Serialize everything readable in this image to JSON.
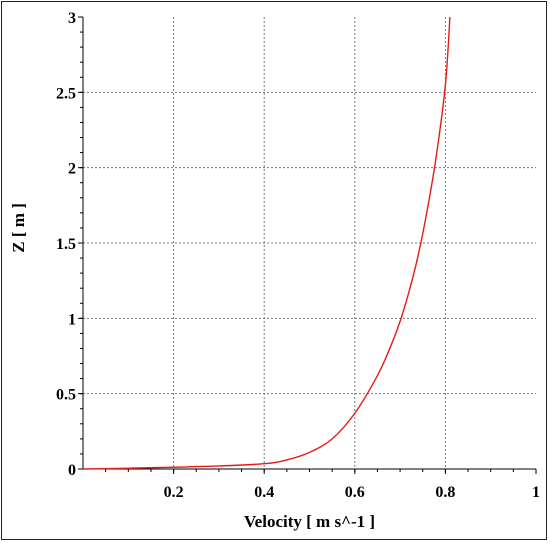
{
  "chart_data": {
    "type": "line",
    "title": "",
    "xlabel": "Velocity [ m s^-1 ]",
    "ylabel": "Z [ m ]",
    "xlim": [
      0,
      1
    ],
    "ylim": [
      0,
      3
    ],
    "x_ticks": [
      0.2,
      0.4,
      0.6,
      0.8,
      1
    ],
    "x_tick_labels": [
      "0.2",
      "0.4",
      "0.6",
      "0.8",
      "1"
    ],
    "y_ticks": [
      0,
      0.5,
      1,
      1.5,
      2,
      2.5,
      3
    ],
    "y_tick_labels": [
      "0",
      "0.5",
      "1",
      "1.5",
      "2",
      "2.5",
      "3"
    ],
    "grid": true,
    "series": [
      {
        "color": "#e41b1b",
        "x": [
          0.0,
          0.1,
          0.2,
          0.3,
          0.4,
          0.45,
          0.5,
          0.55,
          0.6,
          0.65,
          0.68,
          0.7,
          0.72,
          0.74,
          0.76,
          0.78,
          0.8,
          0.81
        ],
        "y": [
          0.0,
          0.005,
          0.012,
          0.02,
          0.035,
          0.06,
          0.11,
          0.2,
          0.37,
          0.62,
          0.82,
          0.98,
          1.18,
          1.42,
          1.72,
          2.08,
          2.55,
          3.0
        ]
      }
    ]
  }
}
